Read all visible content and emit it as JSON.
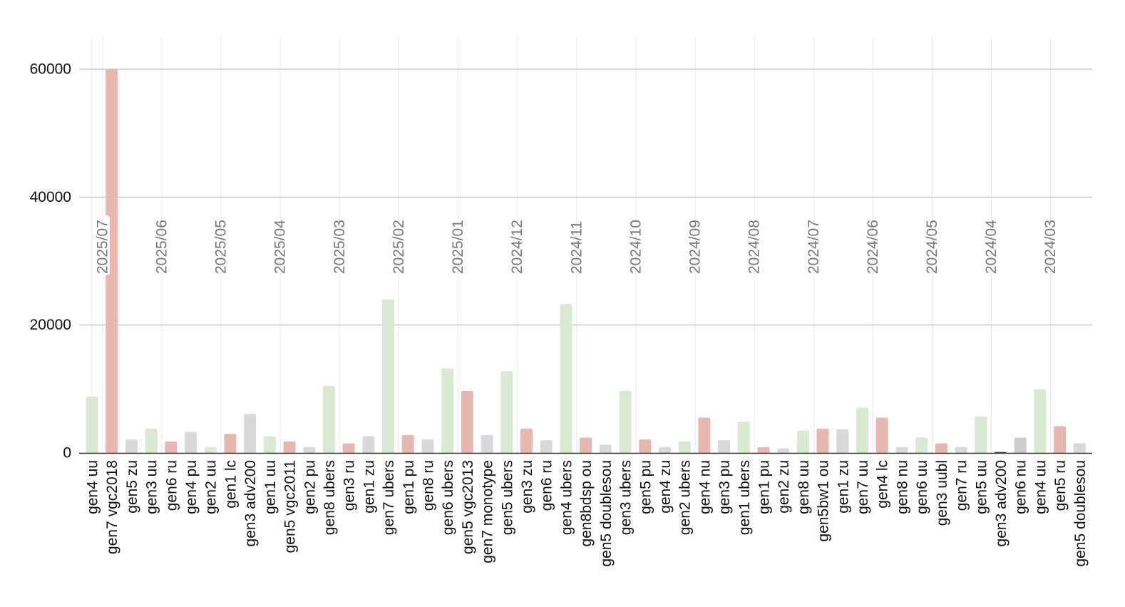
{
  "chart_data": {
    "type": "bar",
    "title": "",
    "xlabel": "",
    "ylabel": "",
    "ylim": [
      0,
      64000
    ],
    "yticks": [
      0,
      20000,
      40000,
      60000
    ],
    "grid": true,
    "legend": "none",
    "colors": {
      "green": "#d9ead3",
      "red": "#e6b8af",
      "gray": "#d9d9d9",
      "darkgray": "#cccccc",
      "black": "#444444",
      "grid": "#cccccc",
      "vgrid": "#e8e8e8",
      "period_label": "#777777",
      "axis_text": "#111111"
    },
    "categories": [
      "gen4 uu",
      "gen7 vgc2018",
      "gen5 zu",
      "gen3 uu",
      "gen6 ru",
      "gen4 pu",
      "gen2 uu",
      "gen1 lc",
      "gen3 adv200",
      "gen1 uu",
      "gen5 vgc2011",
      "gen2 pu",
      "gen8 ubers",
      "gen3 ru",
      "gen1 zu",
      "gen7 ubers",
      "gen1 pu",
      "gen8 ru",
      "gen6 ubers",
      "gen5 vgc2013",
      "gen7 monotype",
      "gen5 ubers",
      "gen3 zu",
      "gen6 ru",
      "gen4 ubers",
      "gen8bdsp ou",
      "gen5 doublesou",
      "gen3 ubers",
      "gen5 pu",
      "gen4 zu",
      "gen2 ubers",
      "gen4 nu",
      "gen3 pu",
      "gen1 ubers",
      "gen1 pu",
      "gen2 zu",
      "gen8 uu",
      "gen5bw1 ou",
      "gen1 zu",
      "gen7 uu",
      "gen4 lc",
      "gen8 nu",
      "gen6 uu",
      "gen3 uubl",
      "gen7 ru",
      "gen5 uu",
      "gen3 adv200",
      "gen6 nu",
      "gen4 uu",
      "gen5 ru",
      "gen5 doublesou"
    ],
    "values": [
      8800,
      60000,
      2100,
      3800,
      1800,
      3300,
      900,
      3000,
      6100,
      2600,
      1800,
      900,
      10500,
      1500,
      2600,
      24000,
      2800,
      2100,
      13200,
      9700,
      2800,
      12800,
      3800,
      2000,
      23300,
      2400,
      1300,
      9700,
      2100,
      900,
      1800,
      5500,
      2000,
      4900,
      900,
      700,
      3500,
      3800,
      3700,
      7100,
      5500,
      900,
      2400,
      1500,
      900,
      5700,
      150,
      2400,
      9900,
      4200,
      1500
    ],
    "bar_colors": [
      "green",
      "red",
      "gray",
      "green",
      "red",
      "gray",
      "green",
      "red",
      "gray",
      "green",
      "red",
      "gray",
      "green",
      "red",
      "gray",
      "green",
      "red",
      "gray",
      "green",
      "red",
      "gray",
      "green",
      "red",
      "gray",
      "green",
      "red",
      "gray",
      "green",
      "red",
      "gray",
      "green",
      "red",
      "gray",
      "green",
      "red",
      "gray",
      "green",
      "red",
      "gray",
      "green",
      "red",
      "gray",
      "green",
      "red",
      "gray",
      "green",
      "black",
      "darkgray",
      "green",
      "red",
      "gray"
    ],
    "period_labels": [
      {
        "label": "2025/07",
        "after_index": 0
      },
      {
        "label": "2025/06",
        "after_index": 3
      },
      {
        "label": "2025/05",
        "after_index": 6
      },
      {
        "label": "2025/04",
        "after_index": 9
      },
      {
        "label": "2025/03",
        "after_index": 12
      },
      {
        "label": "2025/02",
        "after_index": 15
      },
      {
        "label": "2025/01",
        "after_index": 18
      },
      {
        "label": "2024/12",
        "after_index": 21
      },
      {
        "label": "2024/11",
        "after_index": 24
      },
      {
        "label": "2024/10",
        "after_index": 27
      },
      {
        "label": "2024/09",
        "after_index": 30
      },
      {
        "label": "2024/08",
        "after_index": 33
      },
      {
        "label": "2024/07",
        "after_index": 36
      },
      {
        "label": "2024/06",
        "after_index": 39
      },
      {
        "label": "2024/05",
        "after_index": 42
      },
      {
        "label": "2024/04",
        "after_index": 45
      },
      {
        "label": "2024/03",
        "after_index": 48
      }
    ]
  }
}
